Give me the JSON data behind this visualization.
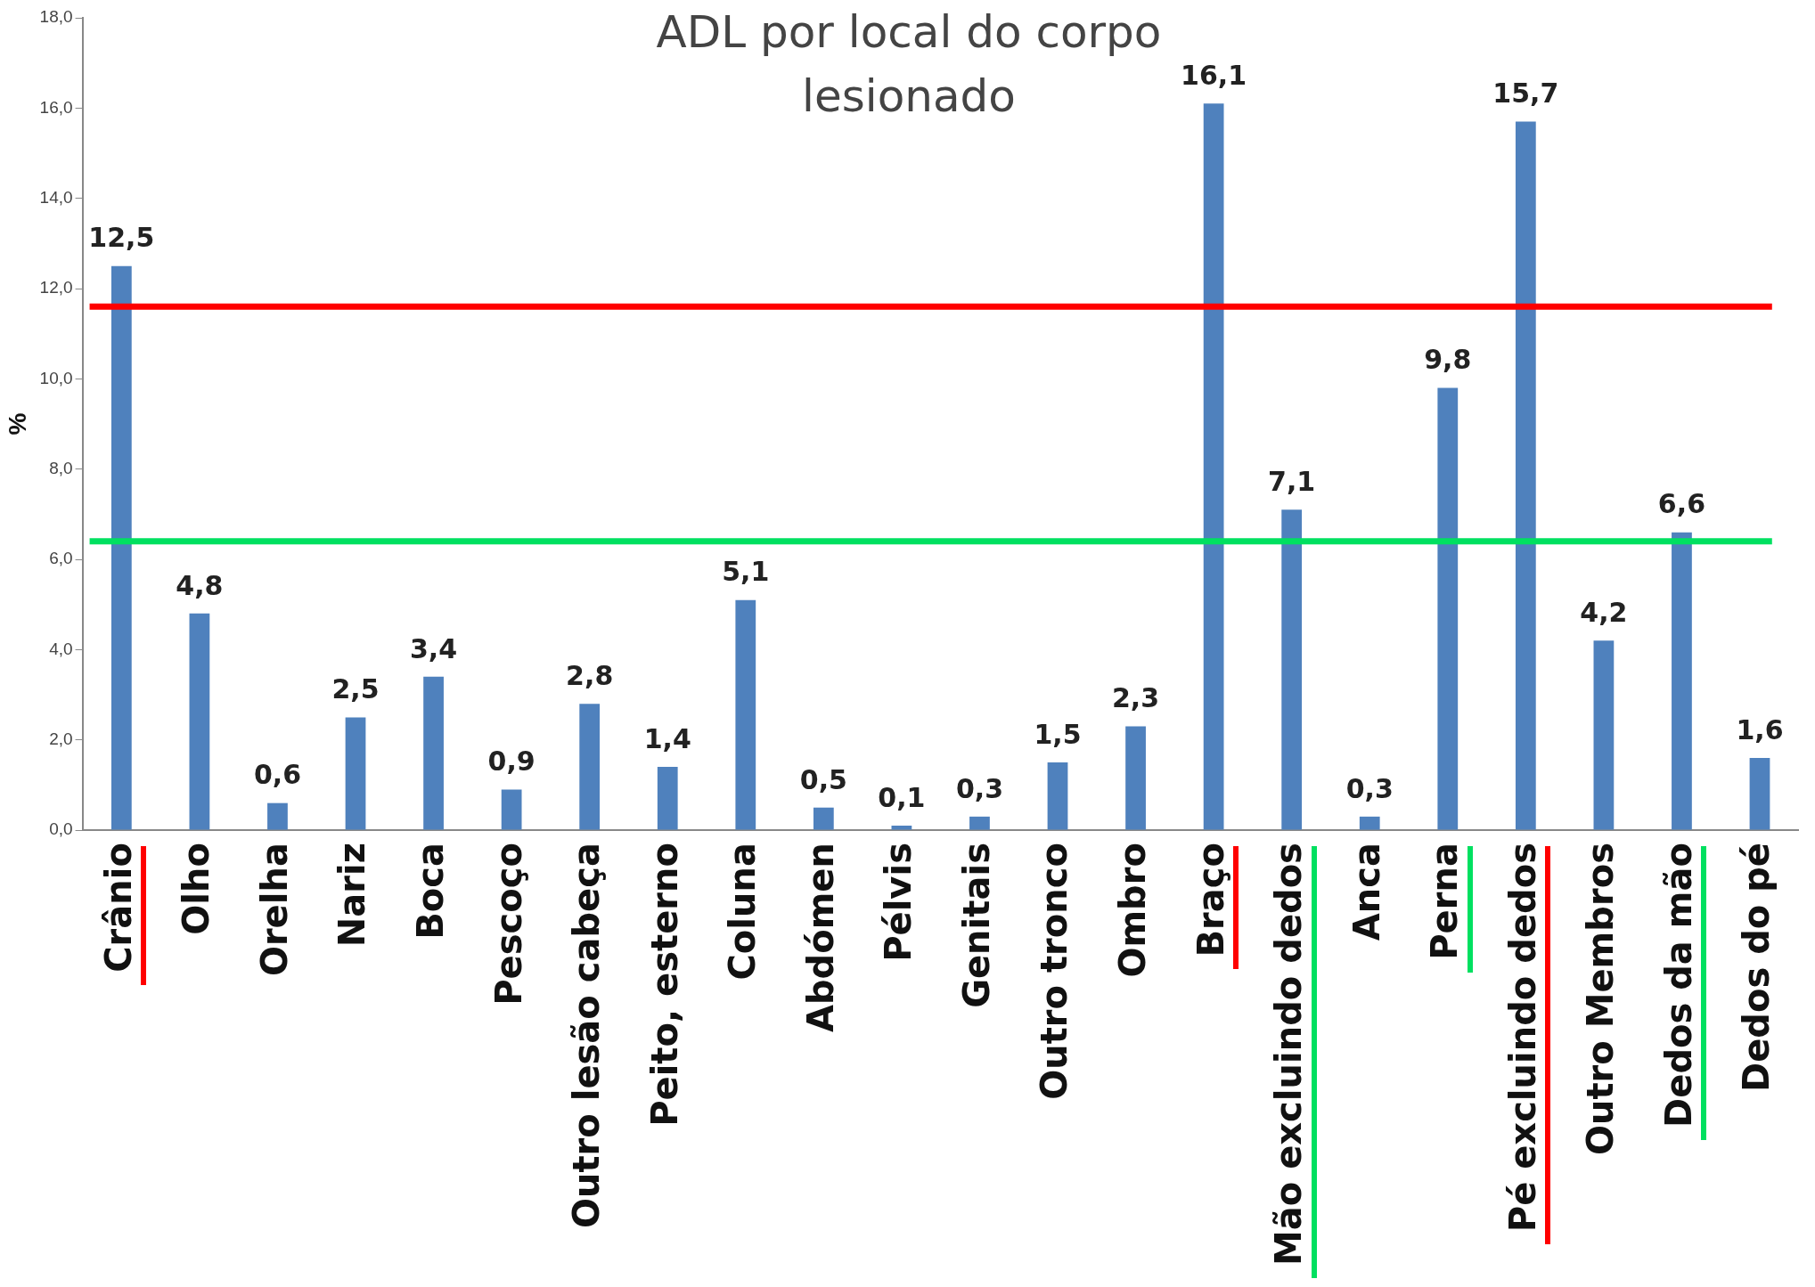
{
  "chart_data": {
    "type": "bar",
    "title": "ADL por local do corpo lesionado",
    "ylabel": "%",
    "categories": [
      "Crânio",
      "Olho",
      "Orelha",
      "Nariz",
      "Boca",
      "Pescoço",
      "Outro lesão cabeça",
      "Peito, esterno",
      "Coluna",
      "Abdómen",
      "Pélvis",
      "Genitais",
      "Outro tronco",
      "Ombro",
      "Braço",
      "Mão excluindo dedos",
      "Anca",
      "Perna",
      "Pé excluindo dedos",
      "Outro Membros",
      "Dedos da mão",
      "Dedos do pé"
    ],
    "values": [
      12.5,
      4.8,
      0.6,
      2.5,
      3.4,
      0.9,
      2.8,
      1.4,
      5.1,
      0.5,
      0.1,
      0.3,
      1.5,
      2.3,
      16.1,
      7.1,
      0.3,
      9.8,
      15.7,
      4.2,
      6.6,
      1.6
    ],
    "value_labels": [
      "12,5",
      "4,8",
      "0,6",
      "2,5",
      "3,4",
      "0,9",
      "2,8",
      "1,4",
      "5,1",
      "0,5",
      "0,1",
      "0,3",
      "1,5",
      "2,3",
      "16,1",
      "7,1",
      "0,3",
      "9,8",
      "15,7",
      "4,2",
      "6,6",
      "1,6"
    ],
    "color": "#4f81bd",
    "ylim": [
      0,
      18
    ],
    "yticks": [
      {
        "value": 0,
        "label": "0,0"
      },
      {
        "value": 2,
        "label": "2,0"
      },
      {
        "value": 4,
        "label": "4,0"
      },
      {
        "value": 6,
        "label": "6,0"
      },
      {
        "value": 8,
        "label": "8,0"
      },
      {
        "value": 10,
        "label": "10,0"
      },
      {
        "value": 12,
        "label": "12,0"
      },
      {
        "value": 14,
        "label": "14,0"
      },
      {
        "value": 16,
        "label": "16,0"
      },
      {
        "value": 18,
        "label": "18,0"
      }
    ],
    "ref_lines": [
      {
        "axis": "y",
        "value": 11.6,
        "color": "#ff0000"
      },
      {
        "axis": "y",
        "value": 6.4,
        "color": "#00e060"
      }
    ],
    "grid": false,
    "legend": false
  }
}
